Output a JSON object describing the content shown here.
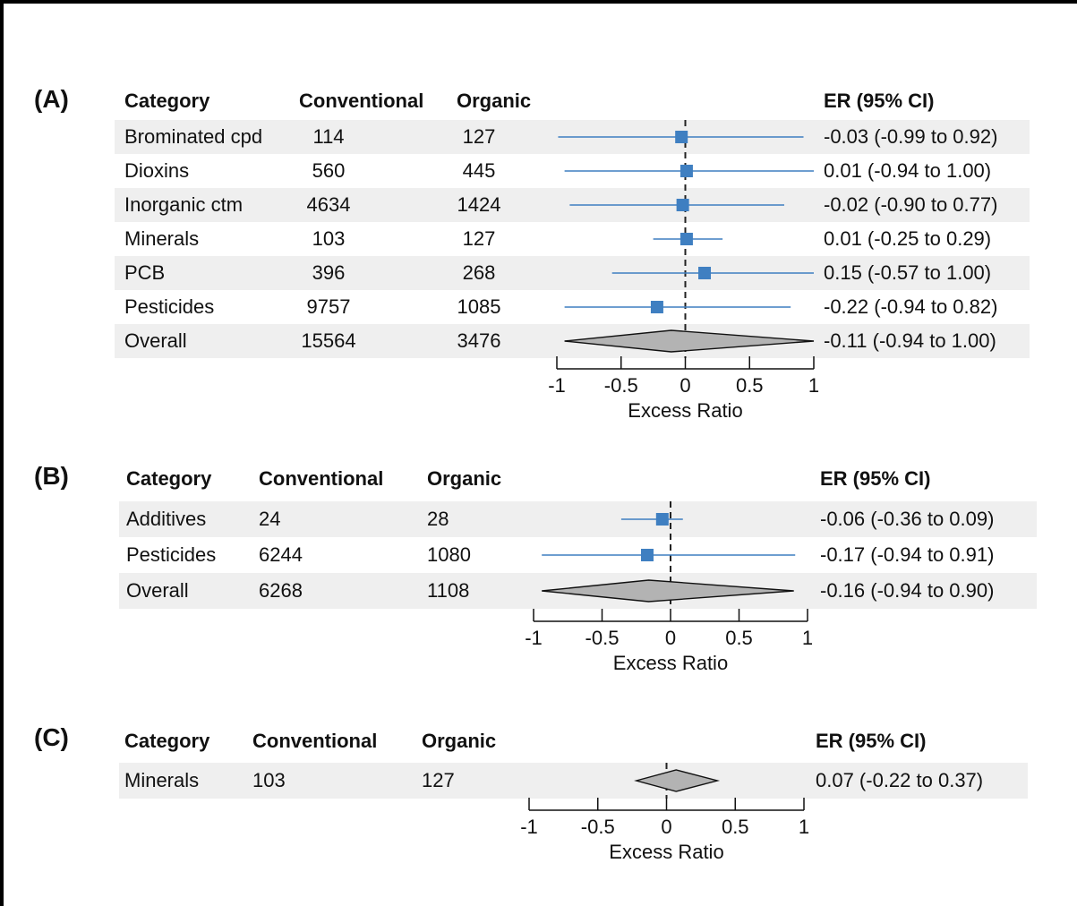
{
  "headers": {
    "category": "Category",
    "conventional": "Conventional",
    "organic": "Organic",
    "er": "ER (95% CI)"
  },
  "colors": {
    "marker": "#3f7fc1",
    "ci_line": "#3f7fc1",
    "diamond_fill": "#b3b3b3",
    "row_shade": "#efefef"
  },
  "chart_data": [
    {
      "type": "forest",
      "panel_label": "(A)",
      "xlabel": "Excess Ratio",
      "xlim": [
        -1,
        1
      ],
      "ticks": [
        "-1",
        "-0.5",
        "0",
        "0.5",
        "1"
      ],
      "reference_line": 0,
      "rows": [
        {
          "category": "Brominated cpd",
          "conventional": "114",
          "organic": "127",
          "er": -0.03,
          "lo": -0.99,
          "hi": 0.92,
          "er_text": "-0.03 (-0.99 to 0.92)",
          "kind": "square"
        },
        {
          "category": "Dioxins",
          "conventional": "560",
          "organic": "445",
          "er": 0.01,
          "lo": -0.94,
          "hi": 1.0,
          "er_text": "0.01 (-0.94 to 1.00)",
          "kind": "square"
        },
        {
          "category": "Inorganic ctm",
          "conventional": "4634",
          "organic": "1424",
          "er": -0.02,
          "lo": -0.9,
          "hi": 0.77,
          "er_text": "-0.02 (-0.90 to 0.77)",
          "kind": "square"
        },
        {
          "category": "Minerals",
          "conventional": "103",
          "organic": "127",
          "er": 0.01,
          "lo": -0.25,
          "hi": 0.29,
          "er_text": "0.01 (-0.25 to 0.29)",
          "kind": "square"
        },
        {
          "category": "PCB",
          "conventional": "396",
          "organic": "268",
          "er": 0.15,
          "lo": -0.57,
          "hi": 1.0,
          "er_text": "0.15 (-0.57 to 1.00)",
          "kind": "square"
        },
        {
          "category": "Pesticides",
          "conventional": "9757",
          "organic": "1085",
          "er": -0.22,
          "lo": -0.94,
          "hi": 0.82,
          "er_text": "-0.22 (-0.94 to 0.82)",
          "kind": "square"
        },
        {
          "category": "Overall",
          "conventional": "15564",
          "organic": "3476",
          "er": -0.11,
          "lo": -0.94,
          "hi": 1.0,
          "er_text": "-0.11 (-0.94 to 1.00)",
          "kind": "diamond"
        }
      ]
    },
    {
      "type": "forest",
      "panel_label": "(B)",
      "xlabel": "Excess Ratio",
      "xlim": [
        -1,
        1
      ],
      "ticks": [
        "-1",
        "-0.5",
        "0",
        "0.5",
        "1"
      ],
      "reference_line": 0,
      "rows": [
        {
          "category": "Additives",
          "conventional": "24",
          "organic": "28",
          "er": -0.06,
          "lo": -0.36,
          "hi": 0.09,
          "er_text": "-0.06 (-0.36 to 0.09)",
          "kind": "square"
        },
        {
          "category": "Pesticides",
          "conventional": "6244",
          "organic": "1080",
          "er": -0.17,
          "lo": -0.94,
          "hi": 0.91,
          "er_text": "-0.17 (-0.94 to 0.91)",
          "kind": "square"
        },
        {
          "category": "Overall",
          "conventional": "6268",
          "organic": "1108",
          "er": -0.16,
          "lo": -0.94,
          "hi": 0.9,
          "er_text": "-0.16 (-0.94 to 0.90)",
          "kind": "diamond"
        }
      ]
    },
    {
      "type": "forest",
      "panel_label": "(C)",
      "xlabel": "Excess Ratio",
      "xlim": [
        -1,
        1
      ],
      "ticks": [
        "-1",
        "-0.5",
        "0",
        "0.5",
        "1"
      ],
      "reference_line": 0,
      "rows": [
        {
          "category": "Minerals",
          "conventional": "103",
          "organic": "127",
          "er": 0.07,
          "lo": -0.22,
          "hi": 0.37,
          "er_text": "0.07 (-0.22 to 0.37)",
          "kind": "diamond"
        }
      ]
    }
  ]
}
